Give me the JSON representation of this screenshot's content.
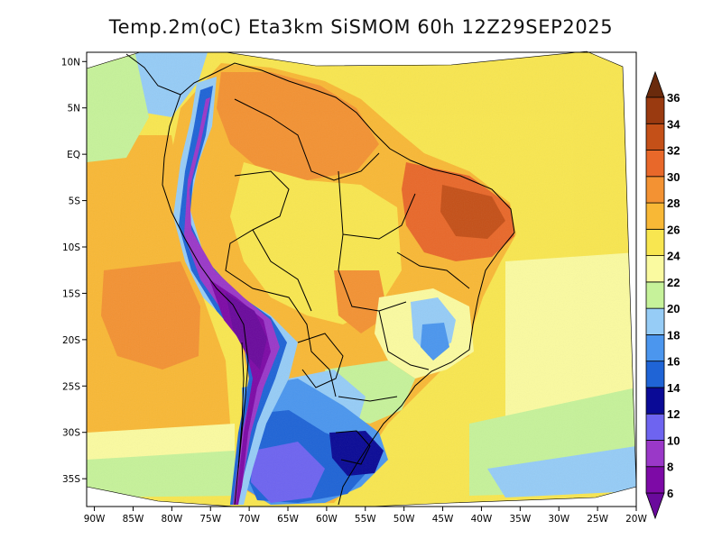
{
  "title": "Temp.2m(oC) Eta3km SiSMOM 60h 12Z29SEP2025",
  "map": {
    "lon_range": [
      -91,
      -20
    ],
    "lat_range": [
      -38,
      11
    ],
    "lon_ticks": [
      {
        "value": -90,
        "label": "90W"
      },
      {
        "value": -85,
        "label": "85W"
      },
      {
        "value": -80,
        "label": "80W"
      },
      {
        "value": -75,
        "label": "75W"
      },
      {
        "value": -70,
        "label": "70W"
      },
      {
        "value": -65,
        "label": "65W"
      },
      {
        "value": -60,
        "label": "60W"
      },
      {
        "value": -55,
        "label": "55W"
      },
      {
        "value": -50,
        "label": "50W"
      },
      {
        "value": -45,
        "label": "45W"
      },
      {
        "value": -40,
        "label": "40W"
      },
      {
        "value": -35,
        "label": "35W"
      },
      {
        "value": -30,
        "label": "30W"
      },
      {
        "value": -25,
        "label": "25W"
      },
      {
        "value": -20,
        "label": "20W"
      }
    ],
    "lat_ticks": [
      {
        "value": 10,
        "label": "10N"
      },
      {
        "value": 5,
        "label": "5N"
      },
      {
        "value": 0,
        "label": "EQ"
      },
      {
        "value": -5,
        "label": "5S"
      },
      {
        "value": -10,
        "label": "10S"
      },
      {
        "value": -15,
        "label": "15S"
      },
      {
        "value": -20,
        "label": "20S"
      },
      {
        "value": -25,
        "label": "25S"
      },
      {
        "value": -30,
        "label": "30S"
      },
      {
        "value": -35,
        "label": "35S"
      }
    ]
  },
  "colorbar": {
    "min_label": "6",
    "bins": [
      {
        "label": "8",
        "color": "#7d0aa6"
      },
      {
        "label": "10",
        "color": "#9a38c8"
      },
      {
        "label": "12",
        "color": "#6e64f0"
      },
      {
        "label": "14",
        "color": "#0a0a96"
      },
      {
        "label": "16",
        "color": "#1f64d6"
      },
      {
        "label": "18",
        "color": "#4b96ee"
      },
      {
        "label": "20",
        "color": "#96ccf6"
      },
      {
        "label": "22",
        "color": "#c6f29a"
      },
      {
        "label": "24",
        "color": "#fafaa0"
      },
      {
        "label": "26",
        "color": "#f8e650"
      },
      {
        "label": "28",
        "color": "#f8b836"
      },
      {
        "label": "30",
        "color": "#f39233"
      },
      {
        "label": "32",
        "color": "#e8682a"
      },
      {
        "label": "34",
        "color": "#c45018"
      },
      {
        "label": "36",
        "color": "#9a3a10"
      }
    ],
    "below_color": "#6a0a9c",
    "above_color": "#6a2a0c"
  }
}
